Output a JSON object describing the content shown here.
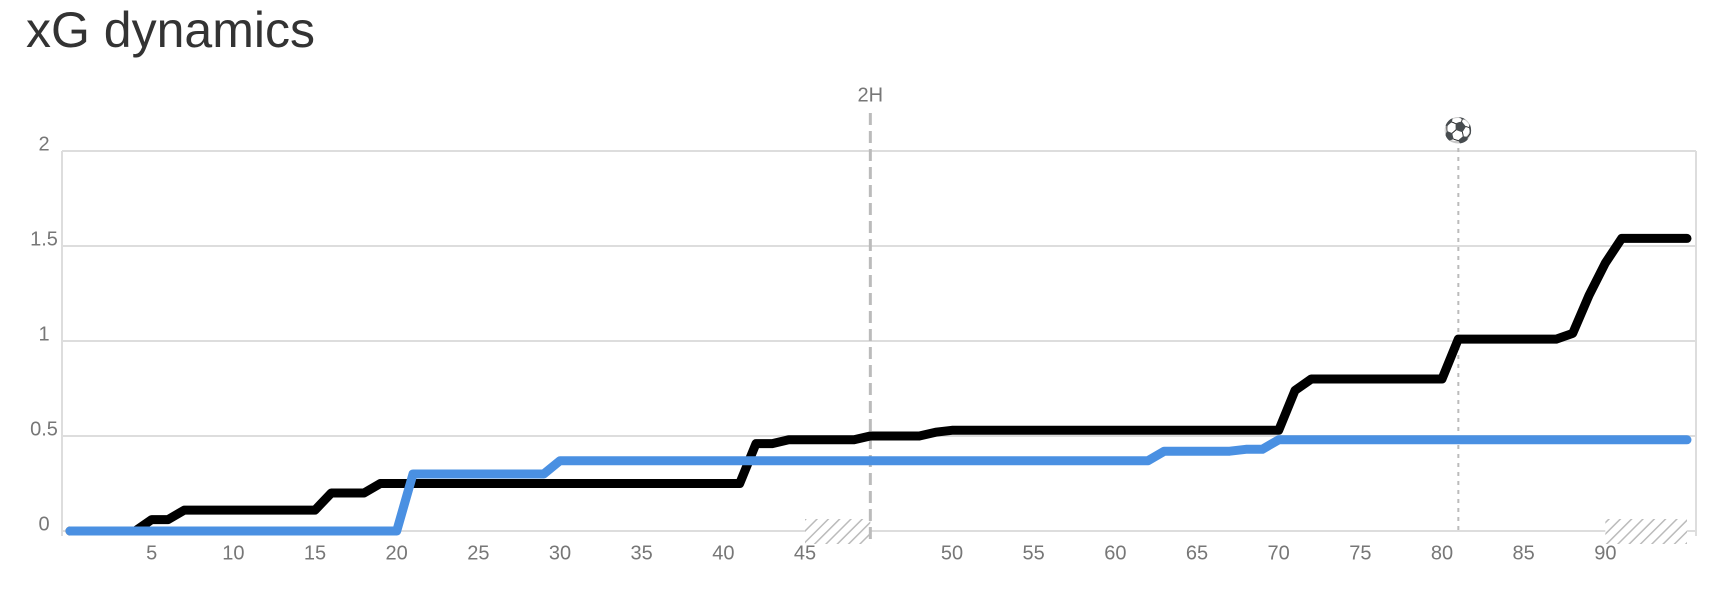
{
  "chart_data": {
    "type": "line",
    "title": "xG dynamics",
    "ylim": [
      0,
      2
    ],
    "yticks": [
      0,
      0.5,
      1,
      1.5,
      2
    ],
    "grid": true,
    "periods": [
      {
        "xlim": [
          0,
          49
        ],
        "xticks": [
          5,
          10,
          15,
          20,
          25,
          30,
          35,
          40,
          45
        ],
        "stoppage_start": 45
      },
      {
        "label": "2H",
        "xlim": [
          45,
          95
        ],
        "xticks": [
          50,
          55,
          60,
          65,
          70,
          75,
          80,
          85,
          90
        ],
        "stoppage_start": 90
      }
    ],
    "events": [
      {
        "period": 1,
        "x": 81,
        "label": "⚽"
      }
    ],
    "series": [
      {
        "color": "#000000",
        "periods": [
          {
            "x": [
              0,
              4,
              5,
              6,
              7,
              15,
              16,
              18,
              19,
              41,
              42,
              43,
              44,
              48,
              49
            ],
            "values": [
              0,
              0,
              0.06,
              0.06,
              0.11,
              0.11,
              0.2,
              0.2,
              0.25,
              0.25,
              0.46,
              0.46,
              0.48,
              0.48,
              0.5
            ]
          },
          {
            "x": [
              45,
              48,
              49,
              50,
              70,
              71,
              72,
              80,
              81,
              87,
              88,
              89,
              90,
              91,
              95
            ],
            "values": [
              0.5,
              0.5,
              0.52,
              0.53,
              0.53,
              0.74,
              0.8,
              0.8,
              1.01,
              1.01,
              1.04,
              1.24,
              1.41,
              1.54,
              1.54
            ]
          }
        ]
      },
      {
        "color": "#4a90e2",
        "periods": [
          {
            "x": [
              0,
              20,
              21,
              29,
              30,
              45,
              49
            ],
            "values": [
              0,
              0,
              0.3,
              0.3,
              0.37,
              0.37,
              0.37
            ]
          },
          {
            "x": [
              45,
              62,
              63,
              67,
              68,
              69,
              70,
              95
            ],
            "values": [
              0.37,
              0.37,
              0.42,
              0.42,
              0.43,
              0.43,
              0.48,
              0.48
            ]
          }
        ]
      }
    ]
  }
}
